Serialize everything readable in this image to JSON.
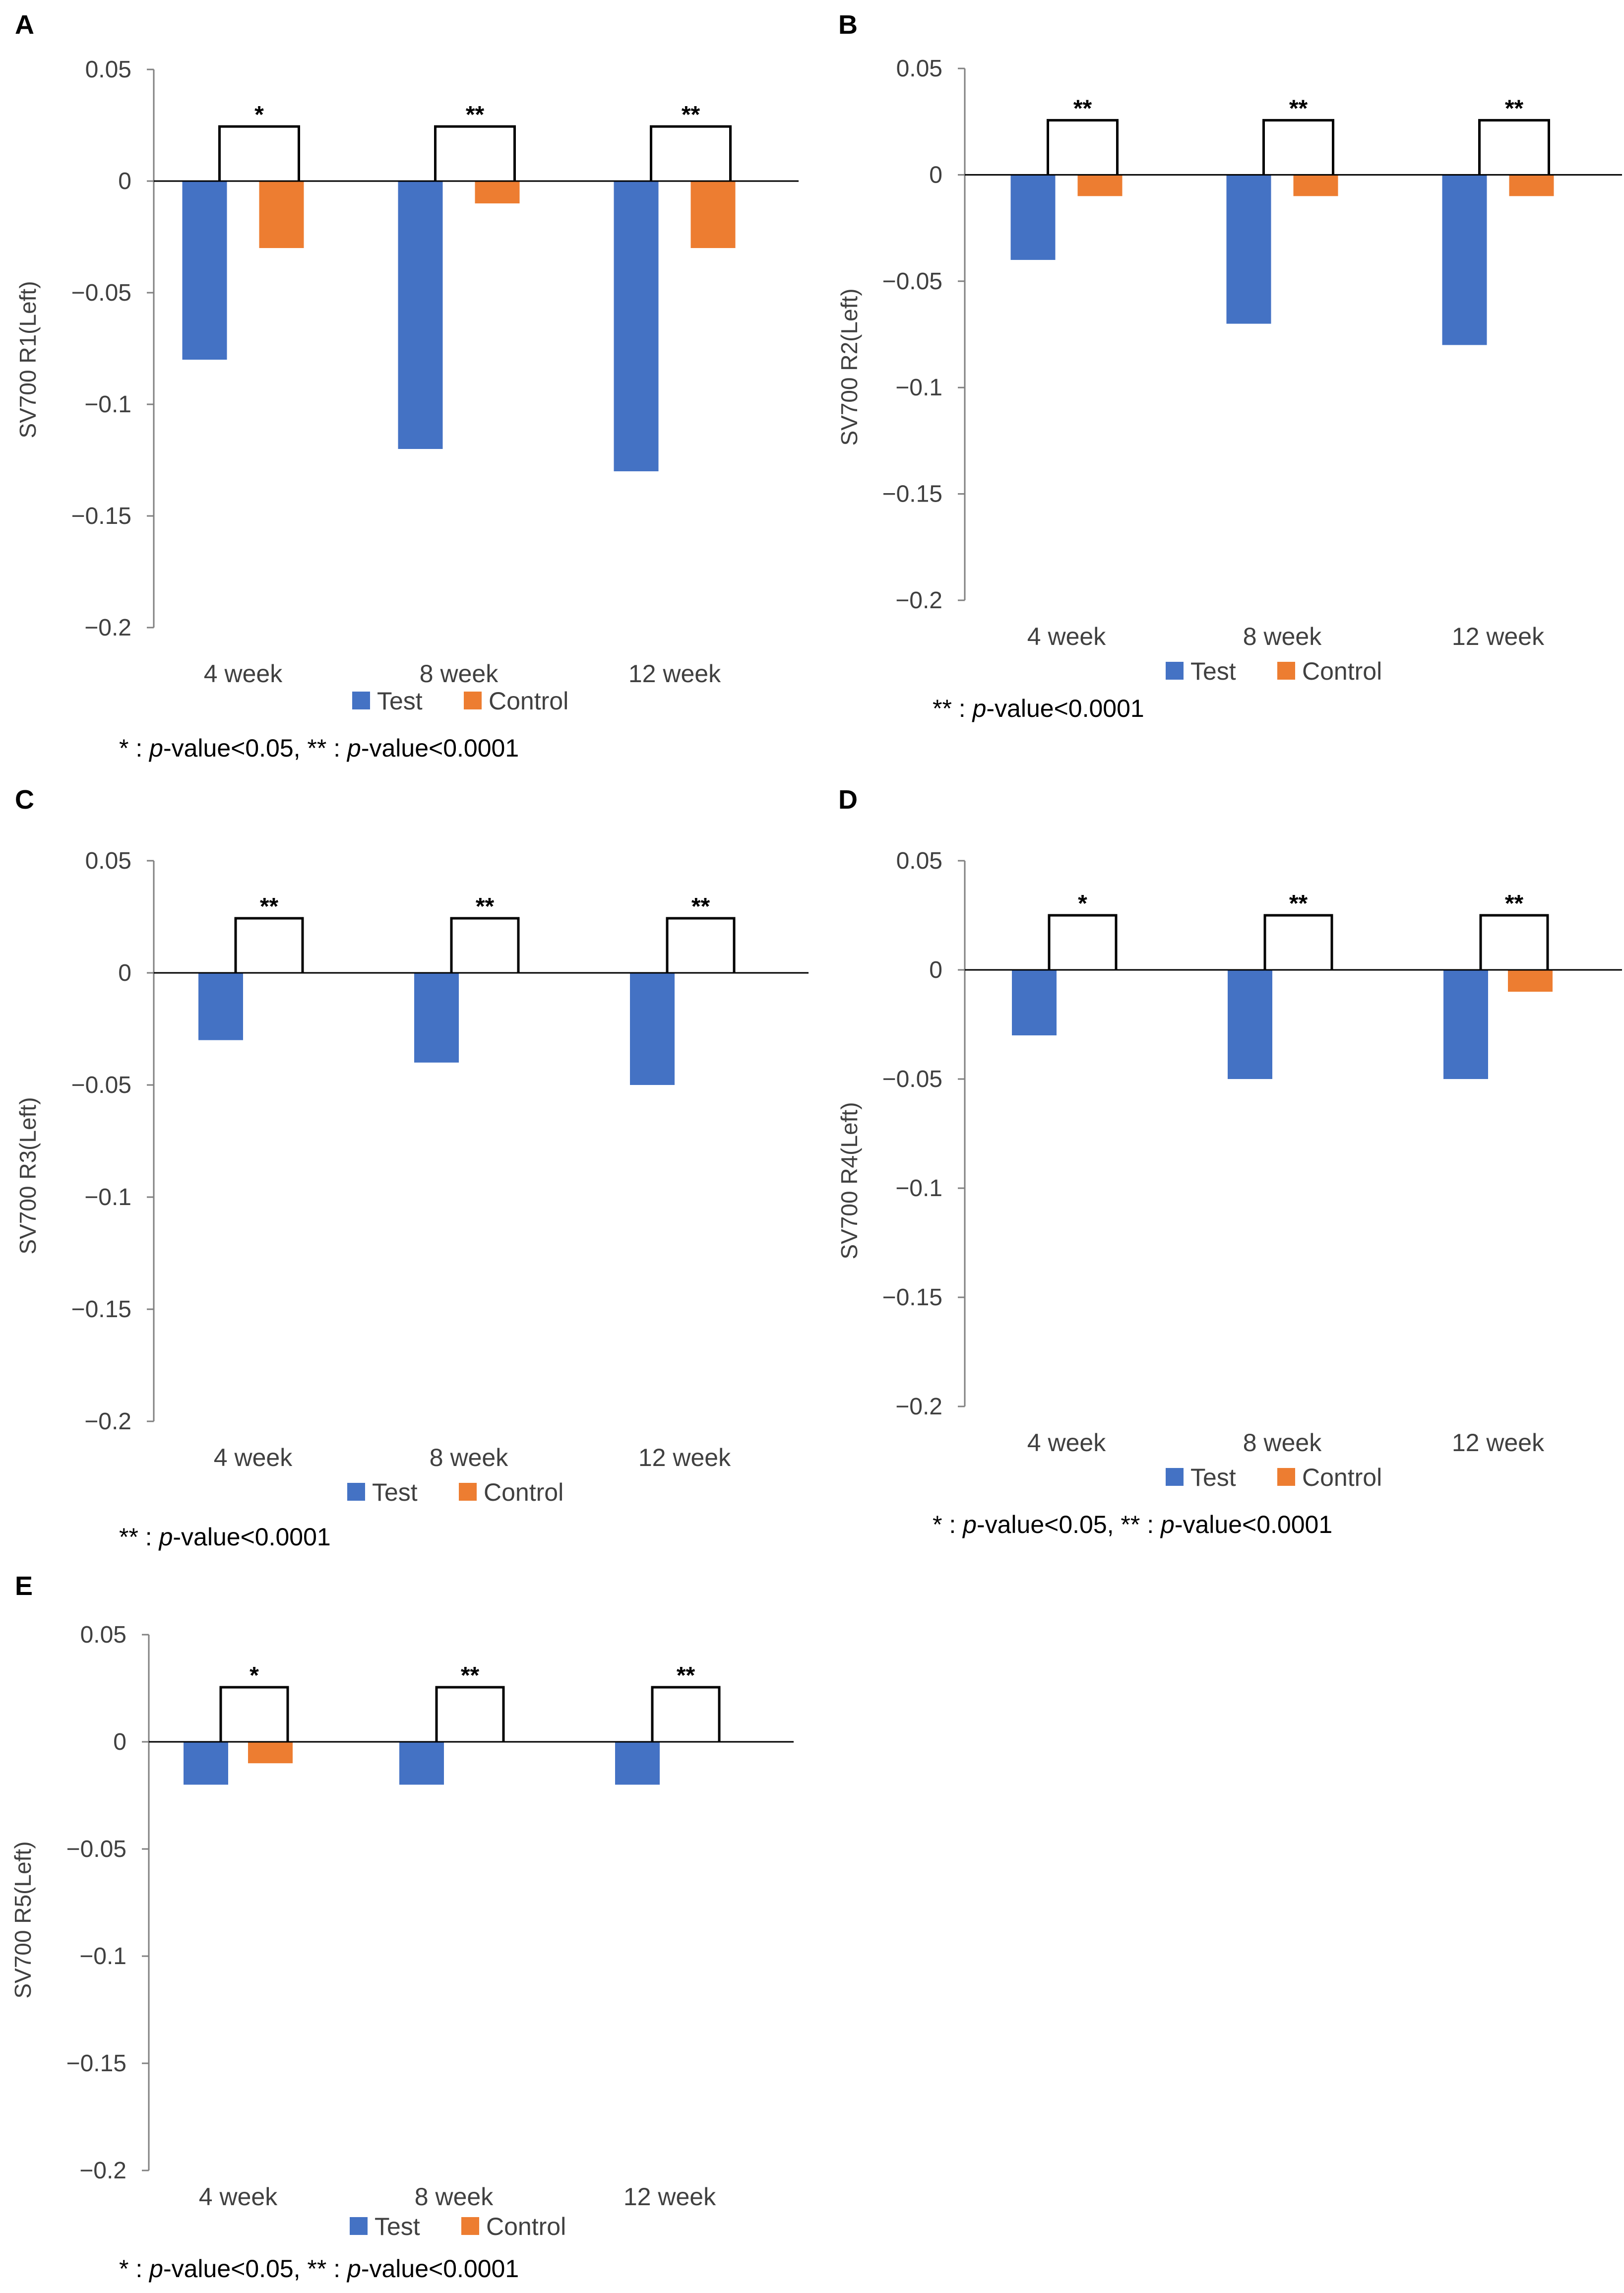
{
  "colors": {
    "test": "#4472C4",
    "control": "#ED7D31",
    "axis": "#808080",
    "text": "#404040"
  },
  "legend": [
    "Test",
    "Control"
  ],
  "footnotes": {
    "A": [
      {
        "text": "* : "
      },
      {
        "text": "p",
        "italic": true
      },
      {
        "text": "-value<0.05, ** : "
      },
      {
        "text": "p",
        "italic": true
      },
      {
        "text": "-value<0.0001"
      }
    ],
    "B": [
      {
        "text": "** : "
      },
      {
        "text": "p",
        "italic": true
      },
      {
        "text": "-value<0.0001"
      }
    ],
    "C": [
      {
        "text": "** : "
      },
      {
        "text": "p",
        "italic": true
      },
      {
        "text": "-value<0.0001"
      }
    ],
    "D": [
      {
        "text": "* : "
      },
      {
        "text": "p",
        "italic": true
      },
      {
        "text": "-value<0.05, ** : "
      },
      {
        "text": "p",
        "italic": true
      },
      {
        "text": "-value<0.0001"
      }
    ],
    "E": [
      {
        "text": "* : "
      },
      {
        "text": "p",
        "italic": true
      },
      {
        "text": "-value<0.05, ** : "
      },
      {
        "text": "p",
        "italic": true
      },
      {
        "text": "-value<0.0001"
      }
    ]
  },
  "chart_data": [
    {
      "panel": "A",
      "type": "bar",
      "ylabel": "SV700 R1(Left)",
      "ylim": [
        -0.2,
        0.05
      ],
      "yticks": [
        "0.05",
        "0",
        "−0.05",
        "−0.1",
        "−0.15",
        "−0.2"
      ],
      "categories": [
        "4 week",
        "8 week",
        "12 week"
      ],
      "series": [
        {
          "name": "Test",
          "values": [
            -0.08,
            -0.12,
            -0.13
          ]
        },
        {
          "name": "Control",
          "values": [
            -0.03,
            -0.01,
            -0.03
          ]
        }
      ],
      "significance": [
        "*",
        "**",
        "**"
      ]
    },
    {
      "panel": "B",
      "type": "bar",
      "ylabel": "SV700 R2(Left)",
      "ylim": [
        -0.2,
        0.05
      ],
      "yticks": [
        "0.05",
        "0",
        "−0.05",
        "−0.1",
        "−0.15",
        "−0.2"
      ],
      "categories": [
        "4 week",
        "8 week",
        "12 week"
      ],
      "series": [
        {
          "name": "Test",
          "values": [
            -0.04,
            -0.07,
            -0.08
          ]
        },
        {
          "name": "Control",
          "values": [
            -0.01,
            -0.01,
            -0.01
          ]
        }
      ],
      "significance": [
        "**",
        "**",
        "**"
      ]
    },
    {
      "panel": "C",
      "type": "bar",
      "ylabel": "SV700 R3(Left)",
      "ylim": [
        -0.2,
        0.05
      ],
      "yticks": [
        "0.05",
        "0",
        "−0.05",
        "−0.1",
        "−0.15",
        "−0.2"
      ],
      "categories": [
        "4 week",
        "8 week",
        "12 week"
      ],
      "series": [
        {
          "name": "Test",
          "values": [
            -0.03,
            -0.04,
            -0.05
          ]
        },
        {
          "name": "Control",
          "values": [
            0,
            0,
            0
          ]
        }
      ],
      "significance": [
        "**",
        "**",
        "**"
      ]
    },
    {
      "panel": "D",
      "type": "bar",
      "ylabel": "SV700 R4(Left)",
      "ylim": [
        -0.2,
        0.05
      ],
      "yticks": [
        "0.05",
        "0",
        "−0.05",
        "−0.1",
        "−0.15",
        "−0.2"
      ],
      "categories": [
        "4 week",
        "8 week",
        "12 week"
      ],
      "series": [
        {
          "name": "Test",
          "values": [
            -0.03,
            -0.05,
            -0.05
          ]
        },
        {
          "name": "Control",
          "values": [
            0,
            0,
            -0.01
          ]
        }
      ],
      "significance": [
        "*",
        "**",
        "**"
      ]
    },
    {
      "panel": "E",
      "type": "bar",
      "ylabel": "SV700 R5(Left)",
      "ylim": [
        -0.2,
        0.05
      ],
      "yticks": [
        "0.05",
        "0",
        "−0.05",
        "−0.1",
        "−0.15",
        "−0.2"
      ],
      "categories": [
        "4 week",
        "8 week",
        "12 week"
      ],
      "series": [
        {
          "name": "Test",
          "values": [
            -0.02,
            -0.02,
            -0.02
          ]
        },
        {
          "name": "Control",
          "values": [
            -0.01,
            0,
            0
          ]
        }
      ],
      "significance": [
        "*",
        "**",
        "**"
      ]
    }
  ]
}
